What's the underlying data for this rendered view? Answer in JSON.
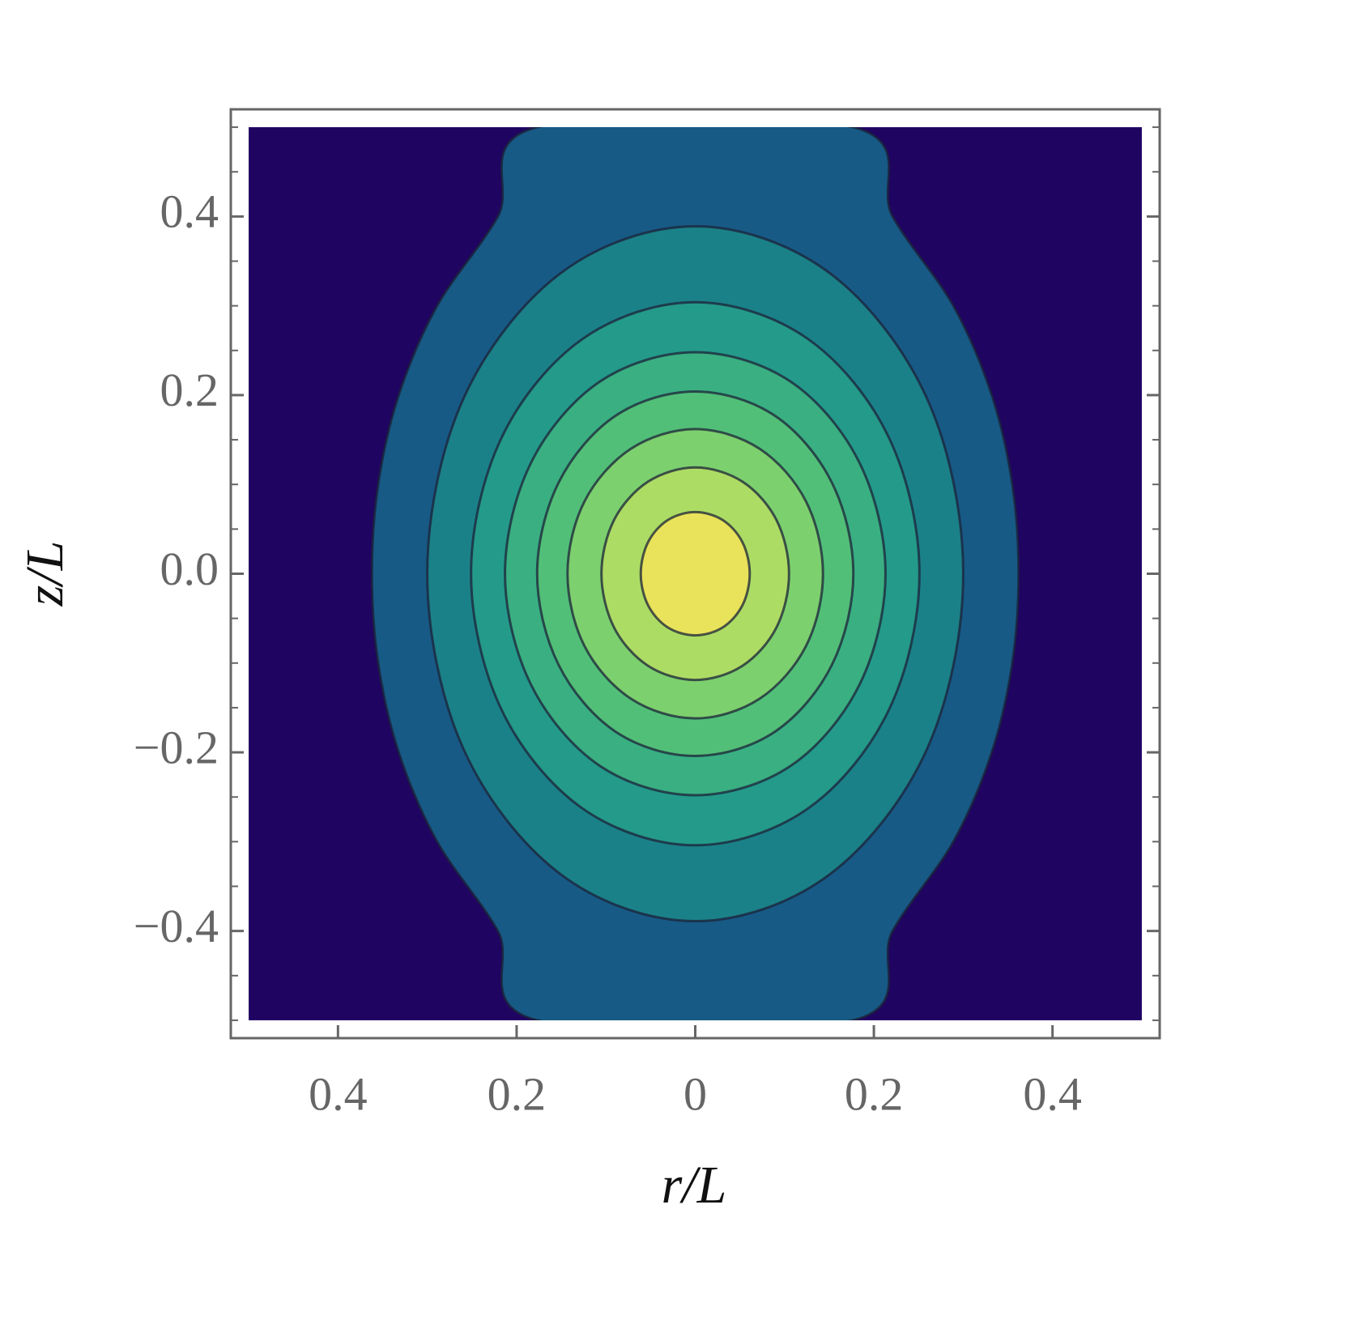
{
  "chart_data": {
    "type": "contour",
    "x_label": "r/L",
    "y_label": "z/L",
    "xlim": [
      -0.52,
      0.52
    ],
    "ylim": [
      -0.52,
      0.52
    ],
    "xticks": [
      {
        "value": -0.4,
        "label": "0.4"
      },
      {
        "value": -0.2,
        "label": "0.2"
      },
      0,
      {
        "value": 0.2,
        "label": "0.2"
      },
      {
        "value": 0.4,
        "label": "0.4"
      }
    ],
    "yticks": [
      {
        "value": -0.4,
        "label": "−0.4"
      },
      {
        "value": -0.2,
        "label": "−0.2"
      },
      {
        "value": 0,
        "label": "0.0"
      },
      0.2,
      0.4
    ],
    "yminorticks": [
      -0.5,
      -0.45,
      -0.35,
      -0.3,
      -0.25,
      -0.15,
      -0.1,
      -0.05,
      0.05,
      0.1,
      0.15,
      0.25,
      0.3,
      0.35,
      0.45,
      0.5
    ],
    "region": {
      "r": [
        -0.5,
        0.5
      ],
      "z": [
        -0.5,
        0.5
      ],
      "color": "#1f0462"
    },
    "contour_line_color": "#1c2238",
    "contours": [
      {
        "color": "#175a85",
        "r": [
          0.177,
          0.221,
          0.289,
          0.332,
          0.355,
          0.362,
          0.355,
          0.332,
          0.289,
          0.221,
          0.177,
          -0.177,
          -0.221,
          -0.289,
          -0.332,
          -0.355,
          -0.362,
          -0.355,
          -0.332,
          -0.289,
          -0.221,
          -0.177
        ],
        "z": [
          0.5,
          0.4,
          0.3,
          0.2,
          0.1,
          0,
          -0.1,
          -0.2,
          -0.3,
          -0.4,
          -0.5,
          -0.5,
          -0.4,
          -0.3,
          -0.2,
          -0.1,
          0,
          0.1,
          0.2,
          0.3,
          0.4,
          0.5
        ]
      },
      {
        "color": "#1b8189",
        "r": [
          0.3,
          0.26,
          0.15,
          0,
          -0.15,
          -0.26,
          -0.3,
          -0.26,
          -0.15,
          0,
          0.15,
          0.26
        ],
        "z": [
          0,
          0.195,
          0.337,
          0.389,
          0.337,
          0.195,
          0,
          -0.195,
          -0.337,
          -0.389,
          -0.337,
          -0.195
        ]
      },
      {
        "color": "#249a8a",
        "r": [
          0.251,
          0.217,
          0.126,
          0,
          -0.126,
          -0.217,
          -0.251,
          -0.217,
          -0.126,
          0,
          0.126,
          0.217
        ],
        "z": [
          0,
          0.152,
          0.263,
          0.304,
          0.263,
          0.152,
          0,
          -0.152,
          -0.263,
          -0.304,
          -0.263,
          -0.152
        ]
      },
      {
        "color": "#3aaf82",
        "r": [
          0.213,
          0.184,
          0.107,
          0,
          -0.107,
          -0.184,
          -0.213,
          -0.184,
          -0.107,
          0,
          0.107,
          0.184
        ],
        "z": [
          0,
          0.124,
          0.215,
          0.248,
          0.215,
          0.124,
          0,
          -0.124,
          -0.215,
          -0.248,
          -0.215,
          -0.124
        ]
      },
      {
        "color": "#52bf78",
        "r": [
          0.177,
          0.153,
          0.089,
          0,
          -0.089,
          -0.153,
          -0.177,
          -0.153,
          -0.089,
          0,
          0.089,
          0.153
        ],
        "z": [
          0,
          0.102,
          0.177,
          0.204,
          0.177,
          0.102,
          0,
          -0.102,
          -0.177,
          -0.204,
          -0.177,
          -0.102
        ]
      },
      {
        "color": "#7dd06e",
        "r": [
          0.143,
          0.124,
          0.072,
          0,
          -0.072,
          -0.124,
          -0.143,
          -0.124,
          -0.072,
          0,
          0.072,
          0.124
        ],
        "z": [
          0,
          0.081,
          0.14,
          0.162,
          0.14,
          0.081,
          0,
          -0.081,
          -0.14,
          -0.162,
          -0.14,
          -0.081
        ]
      },
      {
        "color": "#addc64",
        "r": [
          0.105,
          0.091,
          0.053,
          0,
          -0.053,
          -0.091,
          -0.105,
          -0.091,
          -0.053,
          0,
          0.053,
          0.091
        ],
        "z": [
          0,
          0.06,
          0.103,
          0.119,
          0.103,
          0.06,
          0,
          -0.06,
          -0.103,
          -0.119,
          -0.103,
          -0.06
        ]
      },
      {
        "color": "#e8e35a",
        "r": [
          0.061,
          0.053,
          0.031,
          0,
          -0.031,
          -0.053,
          -0.061,
          -0.053,
          -0.031,
          0,
          0.031,
          0.053
        ],
        "z": [
          0,
          0.035,
          0.06,
          0.069,
          0.06,
          0.035,
          0,
          -0.035,
          -0.06,
          -0.069,
          -0.06,
          -0.035
        ]
      }
    ]
  }
}
